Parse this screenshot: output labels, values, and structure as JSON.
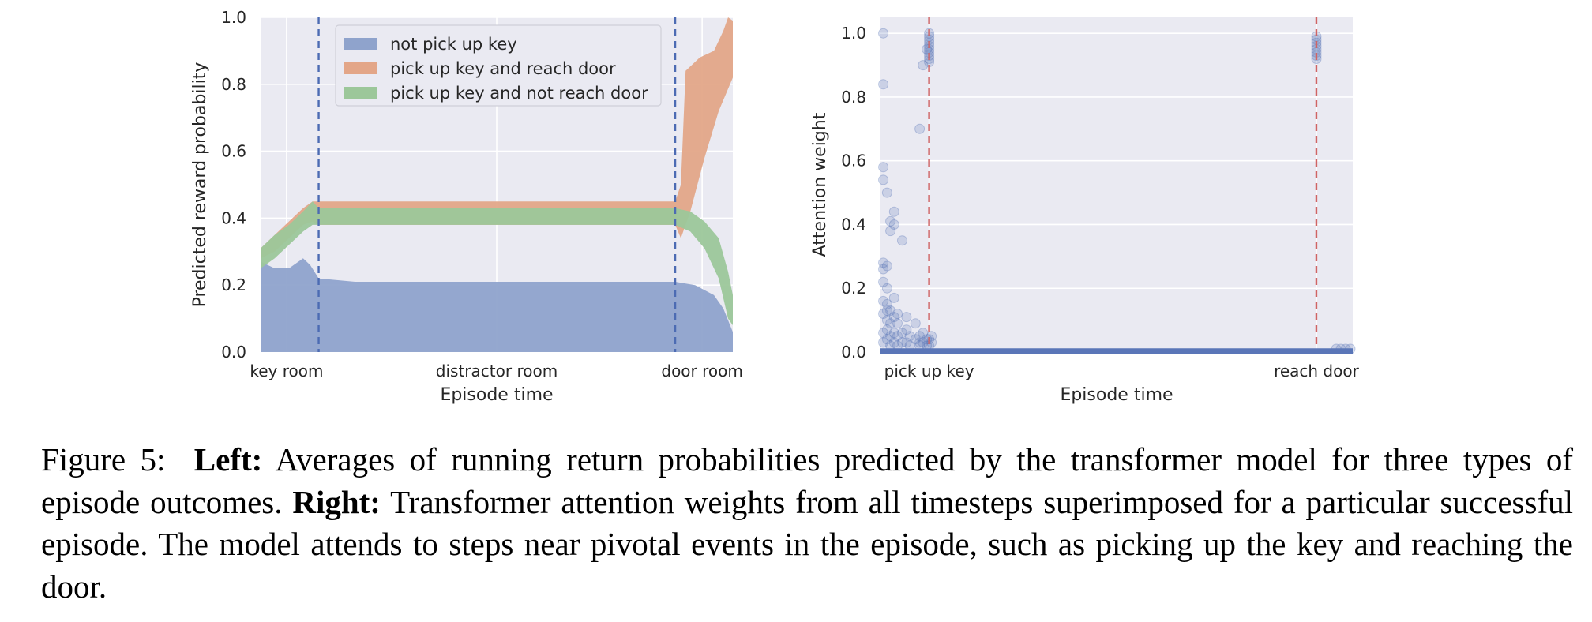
{
  "chart_data": [
    {
      "type": "area",
      "panel": "left",
      "xlabel": "Episode time",
      "ylabel": "Predicted reward probability",
      "x_range": [
        0,
        100
      ],
      "ylim": [
        0,
        1.0
      ],
      "yticks": [
        0.0,
        0.2,
        0.4,
        0.6,
        0.8,
        1.0
      ],
      "ytick_labels": [
        "0.0",
        "0.2",
        "0.4",
        "0.6",
        "0.8",
        "1.0"
      ],
      "xticks": [
        {
          "pos": 5.5,
          "label": "key room"
        },
        {
          "pos": 50,
          "label": "distractor room"
        },
        {
          "pos": 93.5,
          "label": "door room"
        }
      ],
      "vlines": [
        12.3,
        87.8
      ],
      "grid": true,
      "legend_position": "top-center",
      "series": [
        {
          "name": "not pick up key",
          "color": "#8fa3cc",
          "lower": [
            [
              0,
              0
            ],
            [
              12,
              0
            ],
            [
              12.3,
              0
            ],
            [
              88,
              0
            ],
            [
              98,
              0
            ],
            [
              100,
              0
            ]
          ],
          "upper": [
            [
              0,
              0.27
            ],
            [
              3,
              0.25
            ],
            [
              6,
              0.25
            ],
            [
              9,
              0.28
            ],
            [
              10.5,
              0.26
            ],
            [
              12.3,
              0.22
            ],
            [
              20,
              0.21
            ],
            [
              50,
              0.21
            ],
            [
              87.8,
              0.21
            ],
            [
              92,
              0.2
            ],
            [
              96,
              0.17
            ],
            [
              98,
              0.13
            ],
            [
              100,
              0.06
            ]
          ]
        },
        {
          "name": "pick up key and reach door",
          "color": "#e3a688",
          "lower": [
            [
              0,
              0.28
            ],
            [
              3,
              0.3
            ],
            [
              6,
              0.34
            ],
            [
              9,
              0.38
            ],
            [
              11,
              0.39
            ],
            [
              12.3,
              0.38
            ],
            [
              50,
              0.38
            ],
            [
              87.8,
              0.38
            ],
            [
              89,
              0.34
            ],
            [
              91,
              0.42
            ],
            [
              94,
              0.58
            ],
            [
              97,
              0.72
            ],
            [
              100,
              0.82
            ]
          ],
          "upper": [
            [
              0,
              0.31
            ],
            [
              3,
              0.35
            ],
            [
              6,
              0.39
            ],
            [
              9,
              0.43
            ],
            [
              11,
              0.45
            ],
            [
              12.3,
              0.45
            ],
            [
              50,
              0.45
            ],
            [
              87.8,
              0.45
            ],
            [
              89,
              0.5
            ],
            [
              90,
              0.84
            ],
            [
              93,
              0.88
            ],
            [
              96,
              0.9
            ],
            [
              98,
              0.96
            ],
            [
              99,
              1.0
            ],
            [
              100,
              0.99
            ]
          ]
        },
        {
          "name": "pick up key and not reach door",
          "color": "#9cc79a",
          "lower": [
            [
              0,
              0.25
            ],
            [
              3,
              0.28
            ],
            [
              6,
              0.32
            ],
            [
              9,
              0.36
            ],
            [
              11,
              0.38
            ],
            [
              12.3,
              0.38
            ],
            [
              50,
              0.38
            ],
            [
              87.8,
              0.38
            ],
            [
              91,
              0.36
            ],
            [
              94,
              0.31
            ],
            [
              97,
              0.22
            ],
            [
              99,
              0.1
            ],
            [
              100,
              0.08
            ]
          ],
          "upper": [
            [
              0,
              0.31
            ],
            [
              3,
              0.35
            ],
            [
              6,
              0.38
            ],
            [
              9,
              0.42
            ],
            [
              11,
              0.45
            ],
            [
              12.3,
              0.43
            ],
            [
              50,
              0.43
            ],
            [
              87.8,
              0.43
            ],
            [
              91,
              0.42
            ],
            [
              94,
              0.39
            ],
            [
              97,
              0.34
            ],
            [
              99,
              0.24
            ],
            [
              100,
              0.17
            ]
          ]
        }
      ]
    },
    {
      "type": "scatter",
      "panel": "right",
      "xlabel": "Episode time",
      "ylabel": "Attention weight",
      "x_range": [
        0,
        100
      ],
      "ylim": [
        0,
        1.05
      ],
      "yticks": [
        0.0,
        0.2,
        0.4,
        0.6,
        0.8,
        1.0
      ],
      "ytick_labels": [
        "0.0",
        "0.2",
        "0.4",
        "0.6",
        "0.8",
        "1.0"
      ],
      "xticks": [
        {
          "pos": 10.3,
          "label": "pick up key"
        },
        {
          "pos": 92.3,
          "label": "reach door"
        }
      ],
      "vlines": [
        10.3,
        92.3
      ],
      "grid": true,
      "point_color": "#5a76b8",
      "vline_color": "#d06464",
      "points": [
        [
          0.6,
          1.0
        ],
        [
          0.6,
          0.84
        ],
        [
          0.6,
          0.58
        ],
        [
          0.6,
          0.54
        ],
        [
          0.6,
          0.28
        ],
        [
          0.6,
          0.26
        ],
        [
          0.6,
          0.22
        ],
        [
          0.6,
          0.16
        ],
        [
          0.6,
          0.12
        ],
        [
          0.6,
          0.06
        ],
        [
          0.6,
          0.03
        ],
        [
          1.4,
          0.5
        ],
        [
          1.4,
          0.27
        ],
        [
          1.4,
          0.2
        ],
        [
          1.4,
          0.15
        ],
        [
          1.4,
          0.13
        ],
        [
          1.4,
          0.1
        ],
        [
          1.4,
          0.07
        ],
        [
          1.4,
          0.04
        ],
        [
          2.1,
          0.41
        ],
        [
          2.1,
          0.38
        ],
        [
          2.1,
          0.13
        ],
        [
          2.1,
          0.09
        ],
        [
          2.1,
          0.05
        ],
        [
          2.1,
          0.02
        ],
        [
          2.9,
          0.44
        ],
        [
          2.9,
          0.4
        ],
        [
          2.9,
          0.17
        ],
        [
          2.9,
          0.11
        ],
        [
          2.9,
          0.06
        ],
        [
          2.9,
          0.03
        ],
        [
          3.6,
          0.12
        ],
        [
          3.6,
          0.09
        ],
        [
          3.6,
          0.05
        ],
        [
          3.6,
          0.02
        ],
        [
          4.6,
          0.35
        ],
        [
          4.6,
          0.06
        ],
        [
          4.6,
          0.03
        ],
        [
          5.5,
          0.11
        ],
        [
          5.5,
          0.07
        ],
        [
          5.5,
          0.03
        ],
        [
          6.2,
          0.05
        ],
        [
          6.2,
          0.02
        ],
        [
          7.4,
          0.09
        ],
        [
          7.4,
          0.04
        ],
        [
          8.3,
          0.7
        ],
        [
          8.3,
          0.05
        ],
        [
          8.3,
          0.03
        ],
        [
          8.3,
          0.02
        ],
        [
          9.0,
          0.9
        ],
        [
          9.0,
          0.06
        ],
        [
          9.0,
          0.03
        ],
        [
          9.8,
          0.95
        ],
        [
          9.8,
          0.04
        ],
        [
          9.8,
          0.02
        ],
        [
          10.3,
          1.0
        ],
        [
          10.3,
          0.99
        ],
        [
          10.3,
          0.98
        ],
        [
          10.3,
          0.97
        ],
        [
          10.3,
          0.96
        ],
        [
          10.3,
          0.95
        ],
        [
          10.3,
          0.94
        ],
        [
          10.3,
          0.93
        ],
        [
          10.3,
          0.92
        ],
        [
          10.3,
          0.91
        ],
        [
          10.3,
          0.04
        ],
        [
          10.3,
          0.02
        ],
        [
          10.8,
          0.05
        ],
        [
          10.8,
          0.03
        ],
        [
          92.3,
          0.99
        ],
        [
          92.3,
          0.98
        ],
        [
          92.3,
          0.97
        ],
        [
          92.3,
          0.96
        ],
        [
          92.3,
          0.95
        ],
        [
          92.3,
          0.94
        ],
        [
          92.3,
          0.93
        ],
        [
          92.3,
          0.92
        ],
        [
          96.5,
          0.01
        ],
        [
          97.5,
          0.01
        ],
        [
          98.5,
          0.01
        ],
        [
          99.5,
          0.01
        ]
      ]
    }
  ],
  "caption": {
    "figure_label": "Figure 5:",
    "left_label": "Left:",
    "left_text": "Averages of running return probabilities predicted by the transformer model for three types of episode outcomes.",
    "right_label": "Right:",
    "right_text": "Transformer attention weights from all timesteps superimposed for a particular successful episode. The model attends to steps near pivotal events in the episode, such as picking up the key and reaching the door."
  }
}
